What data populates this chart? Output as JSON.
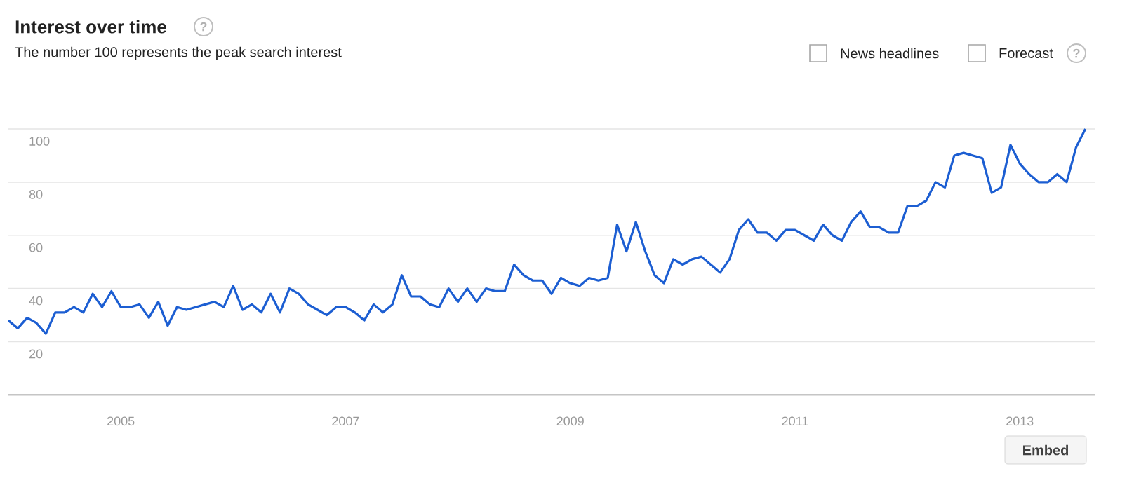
{
  "chart_data": {
    "type": "line",
    "title": "Interest over time",
    "subtitle": "The number 100 represents the peak search interest",
    "annotations": [
      "?",
      "News headlines",
      "Forecast",
      "?",
      "Embed"
    ],
    "x": [
      "2004-01",
      "2004-02",
      "2004-03",
      "2004-04",
      "2004-05",
      "2004-06",
      "2004-07",
      "2004-08",
      "2004-09",
      "2004-10",
      "2004-11",
      "2004-12",
      "2005-01",
      "2005-02",
      "2005-03",
      "2005-04",
      "2005-05",
      "2005-06",
      "2005-07",
      "2005-08",
      "2005-09",
      "2005-10",
      "2005-11",
      "2005-12",
      "2006-01",
      "2006-02",
      "2006-03",
      "2006-04",
      "2006-05",
      "2006-06",
      "2006-07",
      "2006-08",
      "2006-09",
      "2006-10",
      "2006-11",
      "2006-12",
      "2007-01",
      "2007-02",
      "2007-03",
      "2007-04",
      "2007-05",
      "2007-06",
      "2007-07",
      "2007-08",
      "2007-09",
      "2007-10",
      "2007-11",
      "2007-12",
      "2008-01",
      "2008-02",
      "2008-03",
      "2008-04",
      "2008-05",
      "2008-06",
      "2008-07",
      "2008-08",
      "2008-09",
      "2008-10",
      "2008-11",
      "2008-12",
      "2009-01",
      "2009-02",
      "2009-03",
      "2009-04",
      "2009-05",
      "2009-06",
      "2009-07",
      "2009-08",
      "2009-09",
      "2009-10",
      "2009-11",
      "2009-12",
      "2010-01",
      "2010-02",
      "2010-03",
      "2010-04",
      "2010-05",
      "2010-06",
      "2010-07",
      "2010-08",
      "2010-09",
      "2010-10",
      "2010-11",
      "2010-12",
      "2011-01",
      "2011-02",
      "2011-03",
      "2011-04",
      "2011-05",
      "2011-06",
      "2011-07",
      "2011-08",
      "2011-09",
      "2011-10",
      "2011-11",
      "2011-12",
      "2012-01",
      "2012-02",
      "2012-03",
      "2012-04",
      "2012-05",
      "2012-06",
      "2012-07",
      "2012-08",
      "2012-09",
      "2012-10",
      "2012-11",
      "2012-12",
      "2013-01",
      "2013-02",
      "2013-03",
      "2013-04",
      "2013-05",
      "2013-06",
      "2013-07",
      "2013-08"
    ],
    "values": [
      28,
      25,
      29,
      27,
      23,
      31,
      31,
      33,
      31,
      38,
      33,
      39,
      33,
      33,
      34,
      29,
      35,
      26,
      33,
      32,
      33,
      34,
      35,
      33,
      41,
      32,
      34,
      31,
      38,
      31,
      40,
      38,
      34,
      32,
      30,
      33,
      33,
      31,
      28,
      34,
      31,
      34,
      45,
      37,
      37,
      34,
      33,
      40,
      35,
      40,
      35,
      40,
      39,
      39,
      49,
      45,
      43,
      43,
      38,
      44,
      42,
      41,
      44,
      43,
      44,
      64,
      54,
      65,
      54,
      45,
      42,
      51,
      49,
      51,
      52,
      49,
      46,
      51,
      62,
      66,
      61,
      61,
      58,
      62,
      62,
      60,
      58,
      64,
      60,
      58,
      65,
      69,
      63,
      63,
      61,
      61,
      71,
      71,
      73,
      80,
      78,
      90,
      91,
      90,
      89,
      76,
      78,
      94,
      87,
      83,
      80,
      80,
      83,
      80,
      93,
      100
    ],
    "color": "#1c5ed2",
    "xlim": [
      "2004-01",
      "2013-09"
    ],
    "ylim": [
      0,
      100
    ],
    "xticks": [
      "2005",
      "2007",
      "2009",
      "2011",
      "2013"
    ],
    "yticks": [
      20,
      40,
      60,
      80,
      100
    ],
    "grid": "y"
  }
}
